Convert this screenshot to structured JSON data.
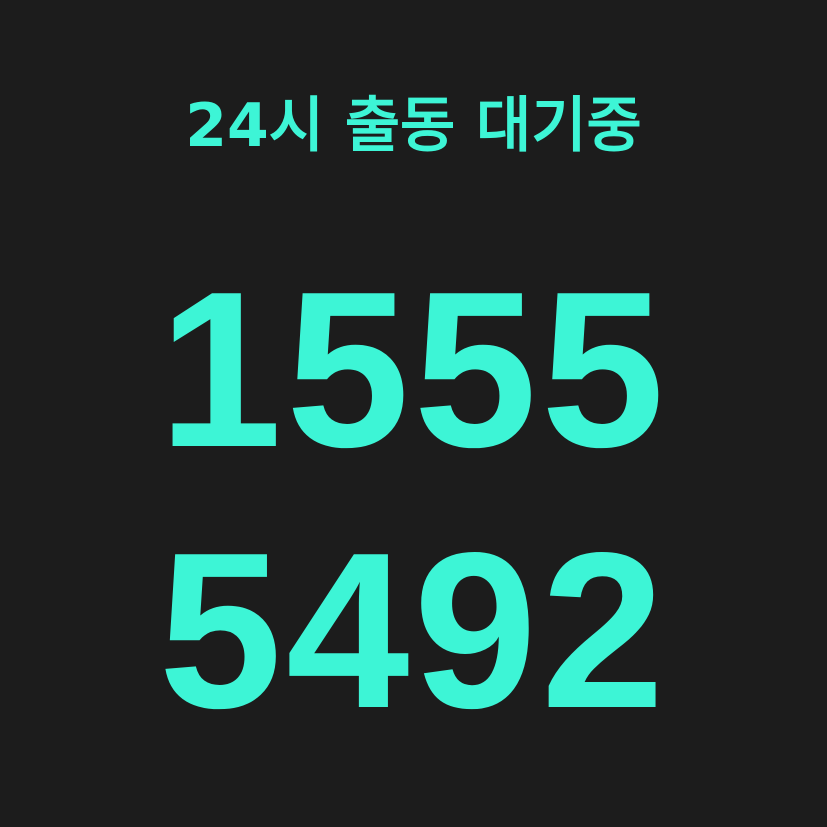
{
  "headline": "24시 출동 대기중",
  "phone": {
    "line1": "1555",
    "line2": "5492"
  },
  "colors": {
    "background": "#1c1c1c",
    "accent": "#3df5d6"
  }
}
